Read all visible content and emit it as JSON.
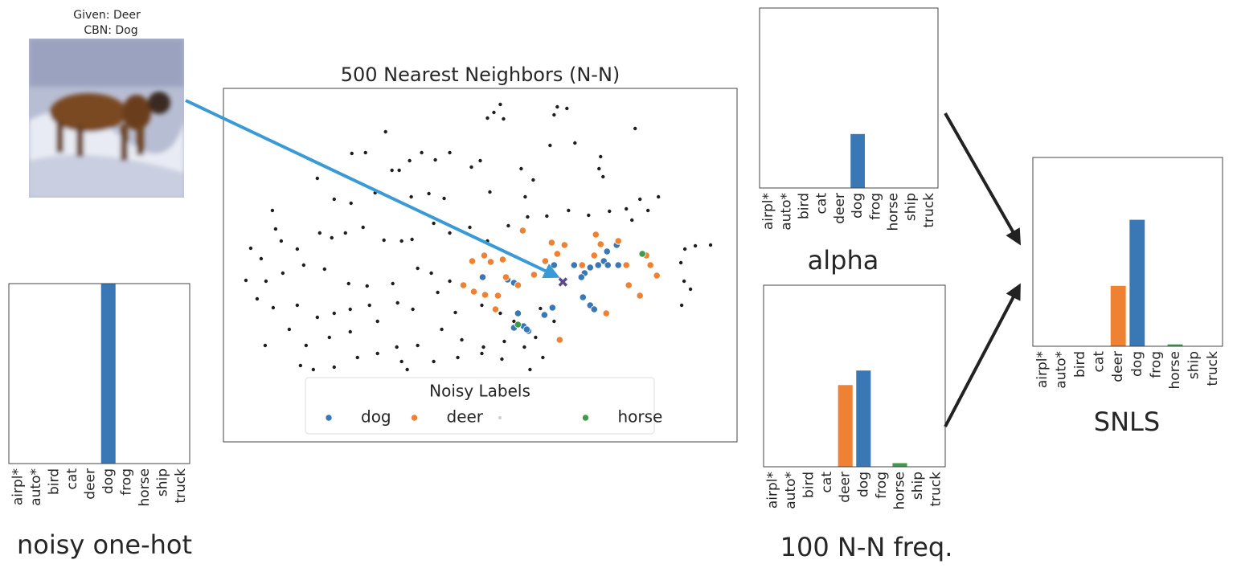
{
  "image": {
    "caption": [
      "Given: Deer",
      "CBN: Dog"
    ]
  },
  "chart_data": [
    {
      "type": "bar",
      "xlabel": "noisy one-hot",
      "categories": [
        "airpl*",
        "auto*",
        "bird",
        "cat",
        "deer",
        "dog",
        "frog",
        "horse",
        "ship",
        "truck"
      ],
      "values": [
        0,
        0,
        0,
        0,
        0,
        1,
        0,
        0,
        0,
        0
      ],
      "colors": [
        "#3a78b5",
        "#3a78b5",
        "#3a78b5",
        "#3a78b5",
        "#ef8133",
        "#3a78b5",
        "#3a78b5",
        "#3d9b49",
        "#3a78b5",
        "#3a78b5"
      ],
      "ylim": [
        0,
        1
      ]
    },
    {
      "type": "scatter",
      "title": "500 Nearest Neighbors (N-N)",
      "xlim": [
        0,
        640
      ],
      "ylim": [
        0,
        440
      ],
      "legend": {
        "title": "Noisy Labels",
        "loc": "lower center"
      },
      "series": [
        {
          "name": "dog",
          "color": "#3a78b5",
          "x": [
            437,
            450,
            457,
            467,
            474,
            490,
            492,
            478,
            412,
            362,
            354,
            323,
            410,
            400,
            367,
            374,
            380,
            362,
            448,
            457,
            462,
            446,
            378,
            479
          ],
          "y": [
            220,
            210,
            217,
            220,
            225,
            245,
            220,
            237,
            220,
            198,
            202,
            205,
            167,
            158,
            160,
            144,
            138,
            142,
            180,
            170,
            165,
            205,
            140,
            220
          ]
        },
        {
          "name": "deer",
          "color": "#ef8133",
          "x": [
            373,
            409,
            425,
            416,
            464,
            470,
            492,
            325,
            333,
            348,
            310,
            299,
            312,
            326,
            342,
            339,
            367,
            387,
            401,
            477,
            505,
            519,
            527,
            532,
            540,
            502,
            447,
            419,
            462,
            352
          ],
          "y": [
            263,
            248,
            245,
            234,
            258,
            246,
            250,
            232,
            224,
            227,
            225,
            195,
            187,
            183,
            182,
            165,
            195,
            208,
            225,
            160,
            195,
            182,
            232,
            220,
            207,
            220,
            220,
            127,
            232,
            205
          ]
        },
        {
          "name": null,
          "color": "#1e1e1e",
          "legend_color": "#d0d0d0",
          "x": [
            345,
            337,
            329,
            349,
            416,
            428,
            412,
            202,
            160,
            177,
            247,
            282,
            320,
            309,
            210,
            219,
            232,
            264,
            470,
            468,
            473,
            513,
            407,
            438,
            371,
            386,
            117,
            189,
            138,
            159,
            234,
            256,
            275,
            332,
            376,
            403,
            430,
            455,
            481,
            502,
            519,
            542,
            529,
            509,
            61,
            65,
            34,
            47,
            72,
            92,
            120,
            135,
            152,
            174,
            200,
            222,
            235,
            262,
            282,
            307,
            329,
            355,
            379,
            28,
            53,
            74,
            100,
            126,
            156,
            179,
            211,
            242,
            259,
            267,
            282,
            575,
            570,
            588,
            607,
            574,
            582,
            571,
            42,
            62,
            92,
            117,
            138,
            158,
            182,
            217,
            236,
            289,
            322,
            345,
            362,
            395,
            412,
            52,
            82,
            103,
            132,
            158,
            192,
            216,
            242,
            272,
            297,
            324,
            350,
            375,
            389,
            96,
            112,
            138,
            167,
            192,
            222,
            262,
            292,
            322,
            347,
            382,
            398,
            229
          ],
          "y": [
            420,
            410,
            403,
            402,
            417,
            415,
            407,
            386,
            359,
            360,
            360,
            360,
            350,
            342,
            338,
            338,
            350,
            351,
            355,
            340,
            330,
            390,
            369,
            372,
            340,
            326,
            328,
            310,
            302,
            297,
            305,
            309,
            303,
            311,
            305,
            281,
            288,
            282,
            287,
            290,
            302,
            305,
            288,
            276,
            288,
            265,
            241,
            228,
            250,
            240,
            260,
            254,
            260,
            267,
            251,
            250,
            252,
            272,
            260,
            267,
            250,
            269,
            280,
            201,
            200,
            210,
            220,
            215,
            197,
            194,
            197,
            216,
            210,
            186,
            200,
            240,
            223,
            244,
            245,
            200,
            190,
            170,
            178,
            167,
            170,
            155,
            160,
            165,
            170,
            173,
            165,
            161,
            170,
            160,
            150,
            166,
            150,
            120,
            140,
            120,
            130,
            137,
            150,
            118,
            120,
            140,
            127,
            118,
            125,
            118,
            130,
            95,
            90,
            93,
            105,
            110,
            100,
            100,
            105,
            110,
            103,
            90,
            105,
            90
          ]
        },
        {
          "name": "horse",
          "color": "#3d9b49",
          "x": [
            522,
            367
          ],
          "y": [
            234,
            146
          ]
        }
      ],
      "query": {
        "x": 423,
        "y": 199,
        "color": "#5b4a8b"
      }
    },
    {
      "type": "bar",
      "xlabel": "alpha",
      "categories": [
        "airpl*",
        "auto*",
        "bird",
        "cat",
        "deer",
        "dog",
        "frog",
        "horse",
        "ship",
        "truck"
      ],
      "values": [
        0,
        0,
        0,
        0,
        0,
        0.3,
        0,
        0,
        0,
        0
      ],
      "colors": [
        "#3a78b5",
        "#3a78b5",
        "#3a78b5",
        "#3a78b5",
        "#ef8133",
        "#3a78b5",
        "#3a78b5",
        "#3d9b49",
        "#3a78b5",
        "#3a78b5"
      ],
      "ylim": [
        0,
        1
      ]
    },
    {
      "type": "bar",
      "xlabel": "100 N-N freq.",
      "categories": [
        "airpl*",
        "auto*",
        "bird",
        "cat",
        "deer",
        "dog",
        "frog",
        "horse",
        "ship",
        "truck"
      ],
      "values": [
        0,
        0,
        0,
        0,
        0.45,
        0.53,
        0,
        0.02,
        0,
        0
      ],
      "colors": [
        "#3a78b5",
        "#3a78b5",
        "#3a78b5",
        "#3a78b5",
        "#ef8133",
        "#3a78b5",
        "#3a78b5",
        "#3d9b49",
        "#3a78b5",
        "#3a78b5"
      ],
      "ylim": [
        0,
        1
      ]
    },
    {
      "type": "bar",
      "xlabel": "SNLS",
      "categories": [
        "airpl*",
        "auto*",
        "bird",
        "cat",
        "deer",
        "dog",
        "frog",
        "horse",
        "ship",
        "truck"
      ],
      "values": [
        0,
        0,
        0,
        0,
        0.32,
        0.67,
        0,
        0.01,
        0,
        0
      ],
      "colors": [
        "#3a78b5",
        "#3a78b5",
        "#3a78b5",
        "#3a78b5",
        "#ef8133",
        "#3a78b5",
        "#3a78b5",
        "#3d9b49",
        "#3a78b5",
        "#3a78b5"
      ],
      "ylim": [
        0,
        1
      ]
    }
  ]
}
